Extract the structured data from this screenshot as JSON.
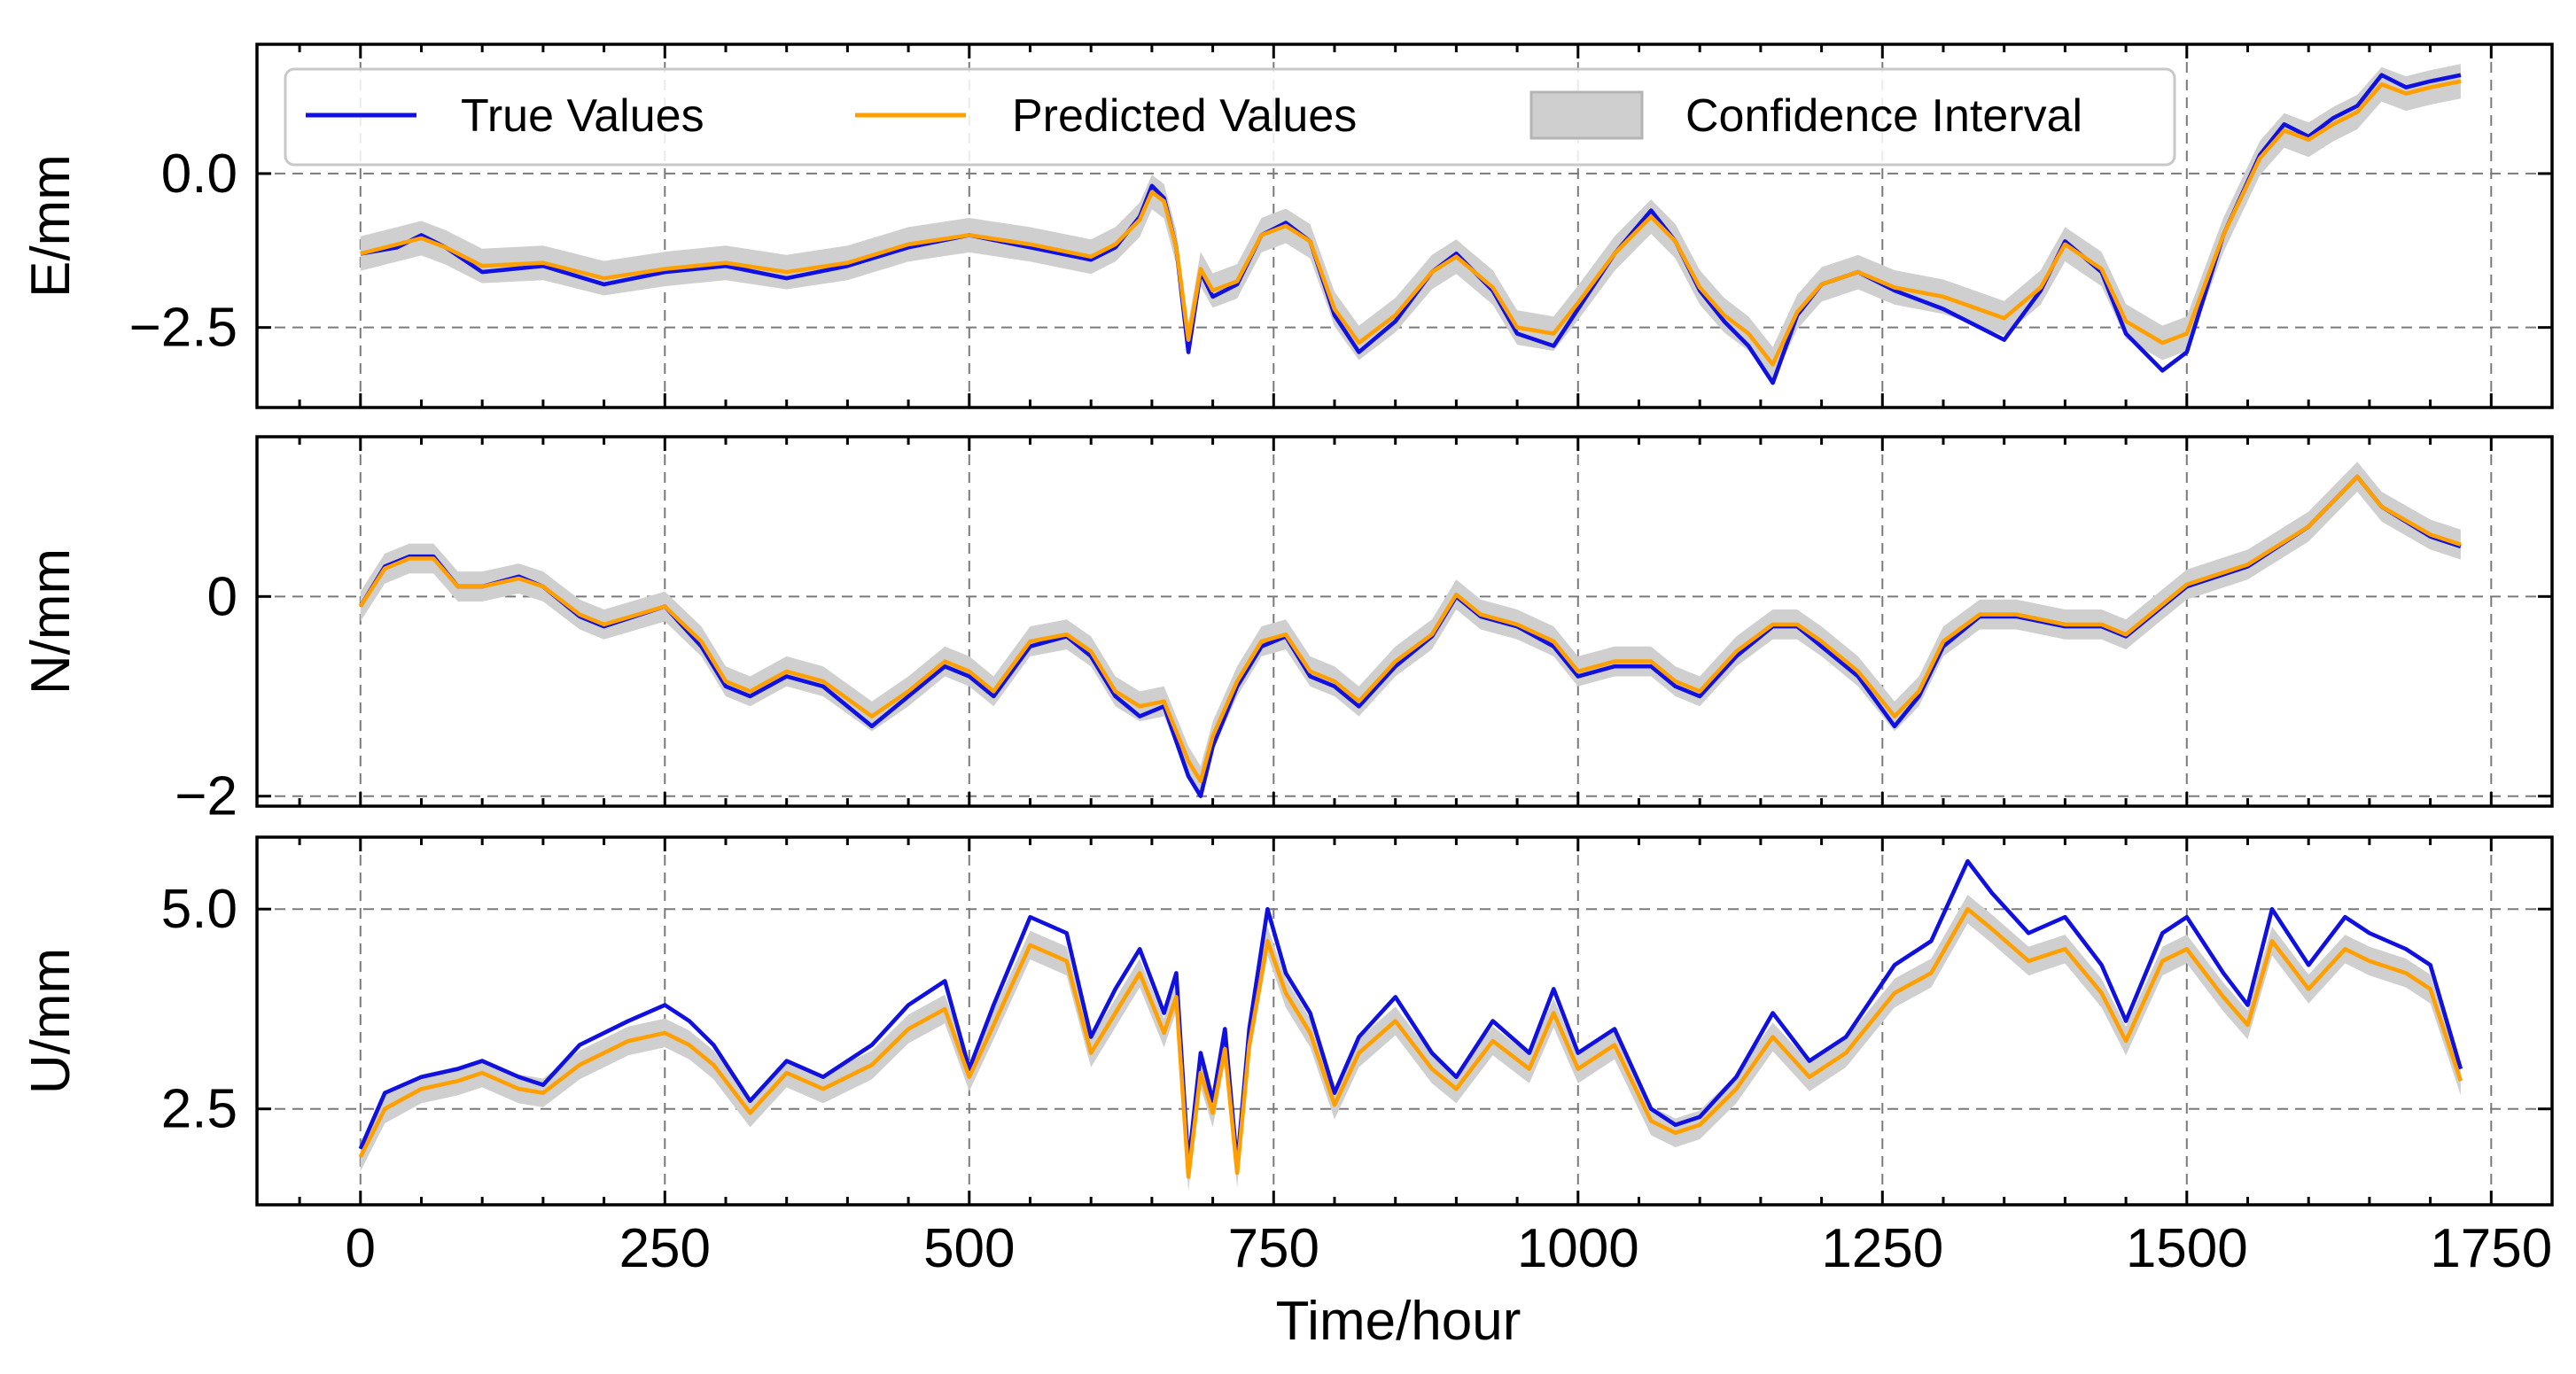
{
  "chart_data": {
    "type": "line",
    "xlabel": "Time/hour",
    "xlim": [
      -85,
      1800
    ],
    "xticks": [
      0,
      250,
      500,
      750,
      1000,
      1250,
      1500,
      1750
    ],
    "xtick_labels": [
      "0",
      "250",
      "500",
      "750",
      "1000",
      "1250",
      "1500",
      "1750"
    ],
    "grid": true,
    "legend": {
      "position": "top (inside first panel)",
      "entries": [
        "True Values",
        "Predicted Values",
        "Confidence Interval"
      ]
    },
    "colors": {
      "true": "#1010e0",
      "pred": "#ffa000",
      "band": "#cfcfcf",
      "band_edge": "#b4b4b4"
    },
    "panels": [
      {
        "ylabel": "E/mm",
        "ylim": [
          -3.8,
          2.1
        ],
        "yticks": [
          0.0,
          -2.5
        ],
        "ytick_labels": [
          "0.0",
          "−2.5"
        ],
        "band_halfwidth": 0.28,
        "x": [
          0,
          30,
          50,
          70,
          100,
          150,
          200,
          250,
          300,
          350,
          400,
          450,
          500,
          550,
          600,
          620,
          640,
          650,
          660,
          670,
          680,
          690,
          700,
          720,
          740,
          760,
          780,
          800,
          820,
          850,
          880,
          900,
          930,
          950,
          980,
          1000,
          1030,
          1060,
          1080,
          1100,
          1120,
          1140,
          1160,
          1180,
          1200,
          1230,
          1260,
          1300,
          1350,
          1380,
          1400,
          1430,
          1450,
          1480,
          1500,
          1530,
          1560,
          1580,
          1600,
          1620,
          1640,
          1660,
          1680,
          1700,
          1725
        ],
        "true": [
          -1.3,
          -1.2,
          -1.0,
          -1.2,
          -1.6,
          -1.5,
          -1.8,
          -1.6,
          -1.5,
          -1.7,
          -1.5,
          -1.2,
          -1.0,
          -1.2,
          -1.4,
          -1.2,
          -0.7,
          -0.2,
          -0.4,
          -1.2,
          -2.9,
          -1.6,
          -2.0,
          -1.8,
          -1.0,
          -0.8,
          -1.1,
          -2.3,
          -2.9,
          -2.4,
          -1.6,
          -1.3,
          -1.9,
          -2.6,
          -2.8,
          -2.2,
          -1.3,
          -0.6,
          -1.1,
          -1.9,
          -2.4,
          -2.8,
          -3.4,
          -2.3,
          -1.8,
          -1.6,
          -1.9,
          -2.2,
          -2.7,
          -1.9,
          -1.1,
          -1.6,
          -2.6,
          -3.2,
          -2.9,
          -1.0,
          0.3,
          0.8,
          0.6,
          0.9,
          1.1,
          1.6,
          1.4,
          1.5,
          1.6
        ],
        "pred": [
          -1.3,
          -1.15,
          -1.05,
          -1.2,
          -1.5,
          -1.45,
          -1.7,
          -1.55,
          -1.45,
          -1.6,
          -1.45,
          -1.15,
          -1.0,
          -1.15,
          -1.35,
          -1.15,
          -0.75,
          -0.3,
          -0.45,
          -1.2,
          -2.7,
          -1.55,
          -1.9,
          -1.75,
          -1.0,
          -0.85,
          -1.1,
          -2.2,
          -2.75,
          -2.3,
          -1.6,
          -1.35,
          -1.85,
          -2.5,
          -2.6,
          -2.1,
          -1.3,
          -0.7,
          -1.1,
          -1.85,
          -2.3,
          -2.6,
          -3.1,
          -2.25,
          -1.8,
          -1.6,
          -1.85,
          -2.0,
          -2.35,
          -1.85,
          -1.15,
          -1.55,
          -2.4,
          -2.75,
          -2.6,
          -1.0,
          0.25,
          0.7,
          0.55,
          0.8,
          1.0,
          1.45,
          1.3,
          1.4,
          1.5
        ]
      },
      {
        "ylabel": "N/mm",
        "ylim": [
          -2.1,
          1.6
        ],
        "yticks": [
          0,
          -2
        ],
        "ytick_labels": [
          "0",
          "−2"
        ],
        "band_halfwidth": 0.15,
        "x": [
          0,
          20,
          40,
          60,
          80,
          100,
          130,
          150,
          180,
          200,
          250,
          280,
          300,
          320,
          350,
          380,
          420,
          450,
          480,
          500,
          520,
          550,
          580,
          600,
          620,
          640,
          660,
          680,
          690,
          700,
          720,
          740,
          760,
          780,
          800,
          820,
          850,
          880,
          900,
          920,
          950,
          980,
          1000,
          1030,
          1060,
          1080,
          1100,
          1130,
          1160,
          1180,
          1200,
          1230,
          1260,
          1280,
          1300,
          1330,
          1360,
          1400,
          1430,
          1450,
          1480,
          1500,
          1550,
          1600,
          1640,
          1660,
          1700,
          1725
        ],
        "true": [
          -0.1,
          0.3,
          0.4,
          0.4,
          0.1,
          0.1,
          0.2,
          0.1,
          -0.2,
          -0.3,
          -0.1,
          -0.5,
          -0.9,
          -1.0,
          -0.8,
          -0.9,
          -1.3,
          -1.0,
          -0.7,
          -0.8,
          -1.0,
          -0.5,
          -0.4,
          -0.6,
          -1.0,
          -1.2,
          -1.1,
          -1.8,
          -2.0,
          -1.5,
          -0.9,
          -0.5,
          -0.4,
          -0.8,
          -0.9,
          -1.1,
          -0.7,
          -0.4,
          0.0,
          -0.2,
          -0.3,
          -0.5,
          -0.8,
          -0.7,
          -0.7,
          -0.9,
          -1.0,
          -0.6,
          -0.3,
          -0.3,
          -0.5,
          -0.8,
          -1.3,
          -1.0,
          -0.5,
          -0.2,
          -0.2,
          -0.3,
          -0.3,
          -0.4,
          -0.1,
          0.1,
          0.3,
          0.7,
          1.2,
          0.9,
          0.6,
          0.5
        ],
        "pred": [
          -0.1,
          0.28,
          0.38,
          0.38,
          0.1,
          0.1,
          0.18,
          0.1,
          -0.18,
          -0.28,
          -0.1,
          -0.45,
          -0.85,
          -0.95,
          -0.75,
          -0.85,
          -1.2,
          -0.95,
          -0.65,
          -0.75,
          -0.95,
          -0.45,
          -0.38,
          -0.55,
          -0.95,
          -1.1,
          -1.05,
          -1.65,
          -1.85,
          -1.4,
          -0.85,
          -0.45,
          -0.38,
          -0.75,
          -0.85,
          -1.05,
          -0.65,
          -0.38,
          0.02,
          -0.18,
          -0.28,
          -0.45,
          -0.75,
          -0.65,
          -0.65,
          -0.85,
          -0.95,
          -0.55,
          -0.28,
          -0.28,
          -0.45,
          -0.75,
          -1.2,
          -0.95,
          -0.45,
          -0.18,
          -0.18,
          -0.28,
          -0.28,
          -0.38,
          -0.08,
          0.12,
          0.32,
          0.7,
          1.2,
          0.9,
          0.62,
          0.52
        ]
      },
      {
        "ylabel": "U/mm",
        "ylim": [
          1.3,
          5.9
        ],
        "yticks": [
          5.0,
          2.5
        ],
        "ytick_labels": [
          "5.0",
          "2.5"
        ],
        "band_halfwidth": 0.18,
        "x": [
          0,
          20,
          50,
          80,
          100,
          130,
          150,
          180,
          220,
          250,
          270,
          290,
          320,
          350,
          380,
          420,
          450,
          480,
          500,
          520,
          550,
          580,
          600,
          620,
          640,
          660,
          670,
          680,
          690,
          700,
          710,
          720,
          730,
          745,
          760,
          780,
          800,
          820,
          850,
          880,
          900,
          930,
          960,
          980,
          1000,
          1030,
          1060,
          1080,
          1100,
          1130,
          1160,
          1190,
          1220,
          1260,
          1290,
          1320,
          1340,
          1370,
          1400,
          1430,
          1450,
          1480,
          1500,
          1530,
          1550,
          1570,
          1600,
          1630,
          1650,
          1680,
          1700,
          1725
        ],
        "true": [
          2.0,
          2.7,
          2.9,
          3.0,
          3.1,
          2.9,
          2.8,
          3.3,
          3.6,
          3.8,
          3.6,
          3.3,
          2.6,
          3.1,
          2.9,
          3.3,
          3.8,
          4.1,
          3.0,
          3.8,
          4.9,
          4.7,
          3.4,
          4.0,
          4.5,
          3.7,
          4.2,
          1.8,
          3.2,
          2.6,
          3.5,
          1.8,
          3.5,
          5.0,
          4.2,
          3.7,
          2.7,
          3.4,
          3.9,
          3.2,
          2.9,
          3.6,
          3.2,
          4.0,
          3.2,
          3.5,
          2.5,
          2.3,
          2.4,
          2.9,
          3.7,
          3.1,
          3.4,
          4.3,
          4.6,
          5.6,
          5.2,
          4.7,
          4.9,
          4.3,
          3.6,
          4.7,
          4.9,
          4.2,
          3.8,
          5.0,
          4.3,
          4.9,
          4.7,
          4.5,
          4.3,
          3.0
        ],
        "pred": [
          1.9,
          2.5,
          2.75,
          2.85,
          2.95,
          2.75,
          2.7,
          3.05,
          3.35,
          3.45,
          3.3,
          3.05,
          2.45,
          2.95,
          2.75,
          3.05,
          3.5,
          3.75,
          2.9,
          3.55,
          4.55,
          4.35,
          3.2,
          3.7,
          4.2,
          3.45,
          3.9,
          1.65,
          2.95,
          2.45,
          3.25,
          1.7,
          3.3,
          4.6,
          3.95,
          3.45,
          2.55,
          3.2,
          3.6,
          3.0,
          2.75,
          3.35,
          3.0,
          3.7,
          3.0,
          3.3,
          2.35,
          2.2,
          2.3,
          2.75,
          3.4,
          2.9,
          3.2,
          3.95,
          4.2,
          5.0,
          4.75,
          4.35,
          4.5,
          3.95,
          3.35,
          4.35,
          4.5,
          3.9,
          3.55,
          4.6,
          4.0,
          4.5,
          4.35,
          4.2,
          4.0,
          2.85
        ]
      }
    ]
  }
}
